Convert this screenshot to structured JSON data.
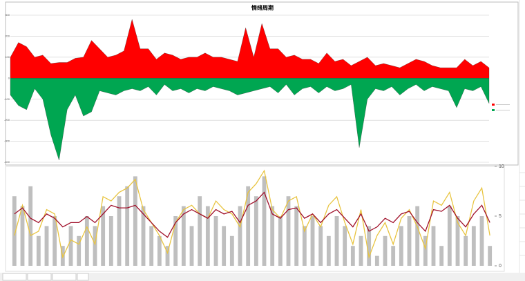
{
  "chart_data": [
    {
      "type": "area",
      "title": "情绪周期",
      "series": [
        {
          "color": "#ff0000",
          "values": [
            100,
            170,
            150,
            100,
            110,
            70,
            75,
            75,
            95,
            100,
            180,
            140,
            100,
            110,
            130,
            280,
            140,
            140,
            90,
            120,
            110,
            90,
            100,
            100,
            120,
            100,
            100,
            90,
            80,
            240,
            100,
            260,
            140,
            140,
            100,
            110,
            90,
            90,
            70,
            120,
            80,
            90,
            60,
            80,
            100,
            60,
            70,
            60,
            50,
            70,
            90,
            80,
            60,
            50,
            50,
            50,
            90,
            60,
            80,
            50
          ]
        },
        {
          "color": "#00a651",
          "values": [
            -80,
            -130,
            -150,
            -50,
            -100,
            -270,
            -390,
            -150,
            -80,
            -180,
            -160,
            -60,
            -70,
            -80,
            -60,
            -50,
            -60,
            -40,
            -80,
            -30,
            -60,
            -50,
            -70,
            -50,
            -60,
            -40,
            -50,
            -60,
            -80,
            -70,
            -60,
            -50,
            -40,
            -70,
            -30,
            -80,
            -50,
            -40,
            -70,
            -40,
            -60,
            -50,
            -30,
            -330,
            -100,
            -50,
            -60,
            -40,
            -80,
            -50,
            -30,
            -60,
            -40,
            -50,
            -60,
            -140,
            -50,
            -60,
            -40,
            -120
          ]
        }
      ],
      "ylim": [
        -400,
        300
      ],
      "yticks": [
        -400,
        -300,
        -200,
        -100,
        0,
        100,
        200,
        300
      ],
      "grid": true
    },
    {
      "type": "combo",
      "series": [
        {
          "color": "#bfbfbf",
          "kind": "bar",
          "axis": "y2",
          "values": [
            7,
            6,
            8,
            3,
            4,
            5,
            2,
            4,
            3,
            5,
            4,
            6,
            5,
            7,
            8,
            9,
            6,
            4,
            3,
            2,
            5,
            6,
            4,
            7,
            6,
            5,
            4,
            3,
            6,
            8,
            7,
            9,
            6,
            5,
            7,
            6,
            4,
            5,
            4,
            3,
            5,
            4,
            2,
            3,
            4,
            1,
            3,
            2,
            4,
            5,
            6,
            3,
            4,
            2,
            6,
            5,
            3,
            4,
            5,
            2
          ]
        },
        {
          "color": "#e8c440",
          "kind": "line",
          "values": [
            -20,
            15,
            -20,
            -15,
            10,
            5,
            -45,
            -25,
            -30,
            -10,
            -30,
            25,
            20,
            30,
            35,
            45,
            10,
            -5,
            -20,
            -40,
            -5,
            10,
            15,
            5,
            0,
            20,
            10,
            5,
            -10,
            30,
            40,
            55,
            10,
            0,
            20,
            25,
            -15,
            5,
            -10,
            15,
            25,
            -5,
            -30,
            10,
            -45,
            -20,
            -5,
            -30,
            0,
            10,
            -10,
            -35,
            20,
            15,
            30,
            -5,
            -20,
            20,
            35,
            -20
          ]
        },
        {
          "color": "#a0102a",
          "kind": "line",
          "values": [
            5,
            12,
            0,
            -5,
            5,
            0,
            -10,
            -5,
            -5,
            2,
            -5,
            5,
            15,
            12,
            12,
            15,
            5,
            -5,
            -15,
            -22,
            -5,
            5,
            10,
            5,
            0,
            10,
            5,
            8,
            -5,
            15,
            20,
            30,
            5,
            0,
            10,
            12,
            0,
            5,
            -5,
            5,
            10,
            0,
            -10,
            5,
            -15,
            -10,
            0,
            -5,
            5,
            8,
            -5,
            -15,
            10,
            8,
            15,
            0,
            -10,
            5,
            15,
            -5
          ]
        }
      ],
      "ylim": [
        -55,
        60
      ],
      "y2lim": [
        0,
        10
      ],
      "y2ticks": [
        0,
        5,
        10
      ]
    }
  ]
}
